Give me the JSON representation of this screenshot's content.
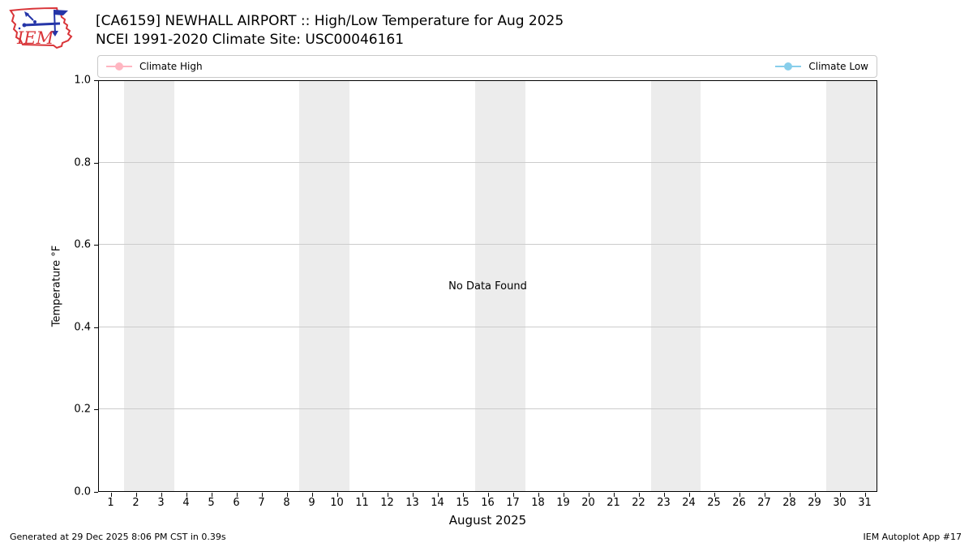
{
  "header": {
    "logo_text": "IEM",
    "title": "[CA6159] NEWHALL AIRPORT :: High/Low Temperature for Aug 2025",
    "subtitle": "NCEI 1991-2020 Climate Site: USC00046161"
  },
  "legend": {
    "entries": [
      {
        "label": "Climate High",
        "color": "#ffb6c1"
      },
      {
        "label": "Climate Low",
        "color": "#87ceeb"
      }
    ]
  },
  "chart_data": {
    "type": "line",
    "title": "[CA6159] NEWHALL AIRPORT :: High/Low Temperature for Aug 2025",
    "subtitle": "NCEI 1991-2020 Climate Site: USC00046161",
    "xlabel": "August 2025",
    "ylabel": "Temperature °F",
    "xlim": [
      0.5,
      31.5
    ],
    "ylim": [
      0.0,
      1.0
    ],
    "x_ticks": [
      1,
      2,
      3,
      4,
      5,
      6,
      7,
      8,
      9,
      10,
      11,
      12,
      13,
      14,
      15,
      16,
      17,
      18,
      19,
      20,
      21,
      22,
      23,
      24,
      25,
      26,
      27,
      28,
      29,
      30,
      31
    ],
    "y_ticks": [
      "0.0",
      "0.2",
      "0.4",
      "0.6",
      "0.8",
      "1.0"
    ],
    "grid": true,
    "legend_position": "top",
    "weekend_bands": [
      [
        1.5,
        3.5
      ],
      [
        8.5,
        10.5
      ],
      [
        15.5,
        17.5
      ],
      [
        22.5,
        24.5
      ],
      [
        29.5,
        31.5
      ]
    ],
    "series": [
      {
        "name": "Climate High",
        "color": "#ffb6c1",
        "x": [],
        "y": []
      },
      {
        "name": "Climate Low",
        "color": "#87ceeb",
        "x": [],
        "y": []
      }
    ],
    "no_data_message": "No Data Found"
  },
  "footer": {
    "left": "Generated at 29 Dec 2025 8:06 PM CST in 0.39s",
    "right": "IEM Autoplot App #17"
  },
  "colors": {
    "weekend_band": "#ececec",
    "gridline": "#cccccc",
    "logo_red": "#d93438",
    "logo_blue": "#2535a8"
  }
}
